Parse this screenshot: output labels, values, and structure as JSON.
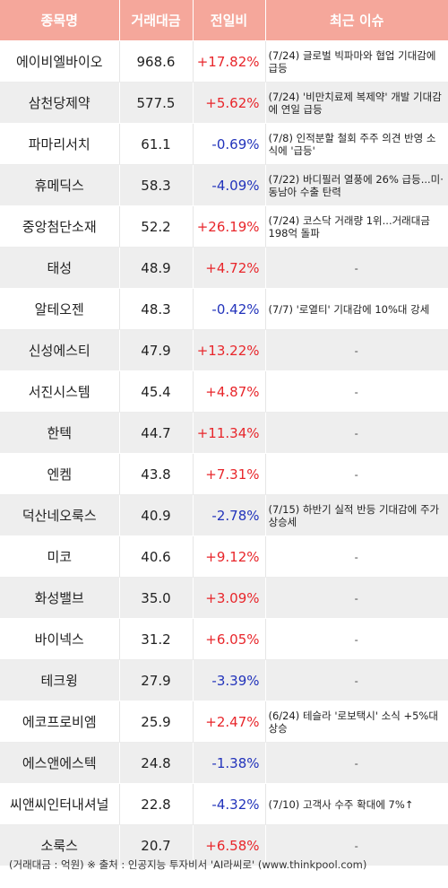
{
  "header": {
    "name": "종목명",
    "volume": "거래대금",
    "change": "전일비",
    "issue": "최근 이슈"
  },
  "rows": [
    {
      "name": "에이비엘바이오",
      "volume": "968.6",
      "change": "+17.82%",
      "dir": "up",
      "issue": "(7/24) 글로벌 빅파마와 협업 기대감에 급등"
    },
    {
      "name": "삼천당제약",
      "volume": "577.5",
      "change": "+5.62%",
      "dir": "up",
      "issue": "(7/24) '비만치료제 복제약' 개발 기대감에 연일 급등"
    },
    {
      "name": "파마리서치",
      "volume": "61.1",
      "change": "-0.69%",
      "dir": "down",
      "issue": "(7/8) 인적분할 철회 주주 의견 반영 소식에 '급등'"
    },
    {
      "name": "휴메딕스",
      "volume": "58.3",
      "change": "-4.09%",
      "dir": "down",
      "issue": "(7/22) 바디필러 열풍에 26% 급등...미·동남아 수출 탄력"
    },
    {
      "name": "중앙첨단소재",
      "volume": "52.2",
      "change": "+26.19%",
      "dir": "up",
      "issue": "(7/24) 코스닥 거래량 1위...거래대금 198억 돌파"
    },
    {
      "name": "태성",
      "volume": "48.9",
      "change": "+4.72%",
      "dir": "up",
      "issue": "-"
    },
    {
      "name": "알테오젠",
      "volume": "48.3",
      "change": "-0.42%",
      "dir": "down",
      "issue": "(7/7) '로열티' 기대감에 10%대 강세"
    },
    {
      "name": "신성에스티",
      "volume": "47.9",
      "change": "+13.22%",
      "dir": "up",
      "issue": "-"
    },
    {
      "name": "서진시스템",
      "volume": "45.4",
      "change": "+4.87%",
      "dir": "up",
      "issue": "-"
    },
    {
      "name": "한텍",
      "volume": "44.7",
      "change": "+11.34%",
      "dir": "up",
      "issue": "-"
    },
    {
      "name": "엔켐",
      "volume": "43.8",
      "change": "+7.31%",
      "dir": "up",
      "issue": "-"
    },
    {
      "name": "덕산네오룩스",
      "volume": "40.9",
      "change": "-2.78%",
      "dir": "down",
      "issue": "(7/15) 하반기 실적 반등 기대감에 주가 상승세"
    },
    {
      "name": "미코",
      "volume": "40.6",
      "change": "+9.12%",
      "dir": "up",
      "issue": "-"
    },
    {
      "name": "화성밸브",
      "volume": "35.0",
      "change": "+3.09%",
      "dir": "up",
      "issue": "-"
    },
    {
      "name": "바이넥스",
      "volume": "31.2",
      "change": "+6.05%",
      "dir": "up",
      "issue": "-"
    },
    {
      "name": "테크윙",
      "volume": "27.9",
      "change": "-3.39%",
      "dir": "down",
      "issue": "-"
    },
    {
      "name": "에코프로비엠",
      "volume": "25.9",
      "change": "+2.47%",
      "dir": "up",
      "issue": "(6/24) 테슬라 '로보택시' 소식 +5%대 상승"
    },
    {
      "name": "에스앤에스텍",
      "volume": "24.8",
      "change": "-1.38%",
      "dir": "down",
      "issue": "-"
    },
    {
      "name": "씨앤씨인터내셔널",
      "volume": "22.8",
      "change": "-4.32%",
      "dir": "down",
      "issue": "(7/10) 고객사 수주 확대에 7%↑"
    },
    {
      "name": "소룩스",
      "volume": "20.7",
      "change": "+6.58%",
      "dir": "up",
      "issue": "-"
    }
  ],
  "footer": "(거래대금 : 억원) ※ 출처 : 인공지능 투자비서 'AI라씨로' (www.thinkpool.com)",
  "colors": {
    "header_bg": "#f5a79b",
    "up": "#e8262b",
    "down": "#2233bb",
    "stripe": "#eeeeee"
  }
}
